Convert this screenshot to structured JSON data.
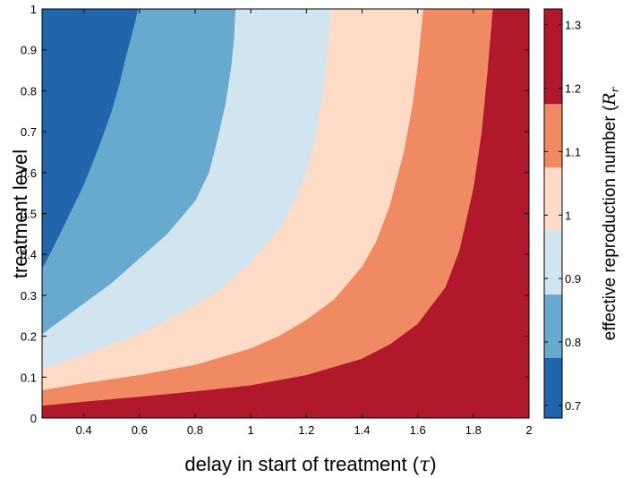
{
  "chart_data": {
    "type": "heatmap",
    "subtype": "filled-contour",
    "xlabel_text": "delay in start of treatment (",
    "xlabel_symbol": "τ",
    "xlabel_close": ")",
    "ylabel": "treatment level",
    "colorbar_label_text": "effective reproduction number (",
    "colorbar_label_symbol": "R",
    "colorbar_label_subscript": "r",
    "xlim": [
      0.25,
      2
    ],
    "ylim": [
      0,
      1
    ],
    "xticks": [
      0.4,
      0.6,
      0.8,
      1,
      1.2,
      1.4,
      1.6,
      1.8,
      2
    ],
    "xtick_labels": [
      "0.4",
      "0.6",
      "0.8",
      "1",
      "1.2",
      "1.4",
      "1.6",
      "1.8",
      "2"
    ],
    "yticks": [
      0,
      0.1,
      0.2,
      0.3,
      0.4,
      0.5,
      0.6,
      0.7,
      0.8,
      0.9,
      1
    ],
    "ytick_labels": [
      "0",
      "0.1",
      "0.2",
      "0.3",
      "0.4",
      "0.5",
      "0.6",
      "0.7",
      "0.8",
      "0.9",
      "1"
    ],
    "colorbar": {
      "range": [
        0.68,
        1.325
      ],
      "ticks": [
        0.7,
        0.8,
        0.9,
        1,
        1.1,
        1.2,
        1.3
      ],
      "tick_labels": [
        "0.7",
        "0.8",
        "0.9",
        "1",
        "1.1",
        "1.2",
        "1.3"
      ],
      "levels": [
        0.68,
        0.775,
        0.875,
        0.975,
        1.075,
        1.175,
        1.325
      ],
      "colors": [
        "#2166ac",
        "#67a9cf",
        "#d1e5f0",
        "#fddbc7",
        "#ef8a62",
        "#b2182b"
      ]
    },
    "contours": [
      {
        "level": 0.775,
        "points": [
          [
            0.25,
            0.365
          ],
          [
            0.27,
            0.39
          ],
          [
            0.3,
            0.43
          ],
          [
            0.35,
            0.5
          ],
          [
            0.4,
            0.57
          ],
          [
            0.45,
            0.655
          ],
          [
            0.5,
            0.75
          ],
          [
            0.53,
            0.82
          ],
          [
            0.55,
            0.88
          ],
          [
            0.57,
            0.93
          ],
          [
            0.585,
            0.97
          ],
          [
            0.595,
            1.0
          ]
        ]
      },
      {
        "level": 0.875,
        "points": [
          [
            0.25,
            0.205
          ],
          [
            0.3,
            0.23
          ],
          [
            0.4,
            0.28
          ],
          [
            0.5,
            0.33
          ],
          [
            0.6,
            0.39
          ],
          [
            0.7,
            0.45
          ],
          [
            0.8,
            0.53
          ],
          [
            0.85,
            0.6
          ],
          [
            0.88,
            0.68
          ],
          [
            0.91,
            0.77
          ],
          [
            0.93,
            0.86
          ],
          [
            0.94,
            0.93
          ],
          [
            0.945,
            1.0
          ]
        ]
      },
      {
        "level": 0.975,
        "points": [
          [
            0.25,
            0.12
          ],
          [
            0.3,
            0.13
          ],
          [
            0.4,
            0.155
          ],
          [
            0.5,
            0.18
          ],
          [
            0.6,
            0.205
          ],
          [
            0.7,
            0.24
          ],
          [
            0.8,
            0.275
          ],
          [
            0.9,
            0.32
          ],
          [
            1.0,
            0.38
          ],
          [
            1.1,
            0.46
          ],
          [
            1.15,
            0.52
          ],
          [
            1.2,
            0.6
          ],
          [
            1.23,
            0.68
          ],
          [
            1.26,
            0.8
          ],
          [
            1.28,
            0.93
          ],
          [
            1.29,
            1.0
          ]
        ]
      },
      {
        "level": 1.075,
        "points": [
          [
            0.25,
            0.068
          ],
          [
            0.4,
            0.085
          ],
          [
            0.6,
            0.105
          ],
          [
            0.8,
            0.13
          ],
          [
            1.0,
            0.17
          ],
          [
            1.1,
            0.2
          ],
          [
            1.2,
            0.24
          ],
          [
            1.3,
            0.29
          ],
          [
            1.4,
            0.37
          ],
          [
            1.45,
            0.43
          ],
          [
            1.5,
            0.52
          ],
          [
            1.55,
            0.65
          ],
          [
            1.58,
            0.76
          ],
          [
            1.6,
            0.86
          ],
          [
            1.62,
            1.0
          ]
        ]
      },
      {
        "level": 1.175,
        "points": [
          [
            0.25,
            0.03
          ],
          [
            0.4,
            0.04
          ],
          [
            0.6,
            0.052
          ],
          [
            0.8,
            0.065
          ],
          [
            1.0,
            0.08
          ],
          [
            1.2,
            0.105
          ],
          [
            1.4,
            0.145
          ],
          [
            1.5,
            0.18
          ],
          [
            1.6,
            0.23
          ],
          [
            1.7,
            0.32
          ],
          [
            1.75,
            0.41
          ],
          [
            1.8,
            0.56
          ],
          [
            1.83,
            0.7
          ],
          [
            1.85,
            0.84
          ],
          [
            1.87,
            1.0
          ]
        ]
      }
    ]
  }
}
